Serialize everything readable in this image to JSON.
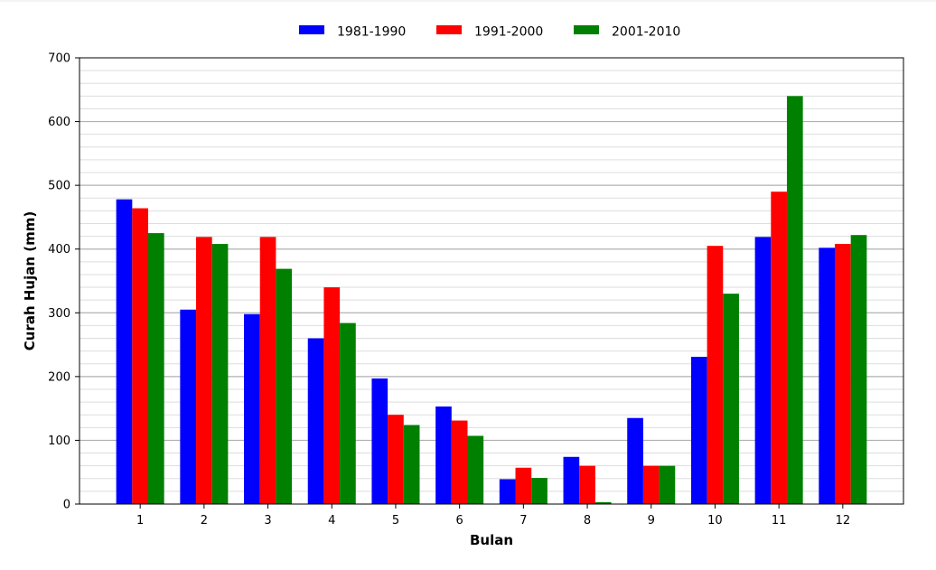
{
  "chart_data": {
    "type": "bar",
    "title": "",
    "xlabel": "Bulan",
    "ylabel": "Curah Hujan (mm)",
    "categories": [
      "1",
      "2",
      "3",
      "4",
      "5",
      "6",
      "7",
      "8",
      "9",
      "10",
      "11",
      "12"
    ],
    "series": [
      {
        "name": "1981-1990",
        "color": "#0000ff",
        "values": [
          478,
          305,
          298,
          260,
          197,
          153,
          39,
          74,
          135,
          231,
          419,
          402
        ]
      },
      {
        "name": "1991-2000",
        "color": "#ff0000",
        "values": [
          464,
          419,
          419,
          340,
          140,
          131,
          57,
          60,
          60,
          405,
          490,
          408
        ]
      },
      {
        "name": "2001-2010",
        "color": "#008000",
        "values": [
          425,
          408,
          369,
          284,
          124,
          107,
          41,
          3,
          60,
          330,
          640,
          422
        ]
      }
    ],
    "ylim": [
      0,
      700
    ],
    "yticks": [
      0,
      100,
      200,
      300,
      400,
      500,
      600,
      700
    ],
    "grid": {
      "major": true,
      "minor": true,
      "axis": "y"
    },
    "legend_position": "top-center"
  }
}
